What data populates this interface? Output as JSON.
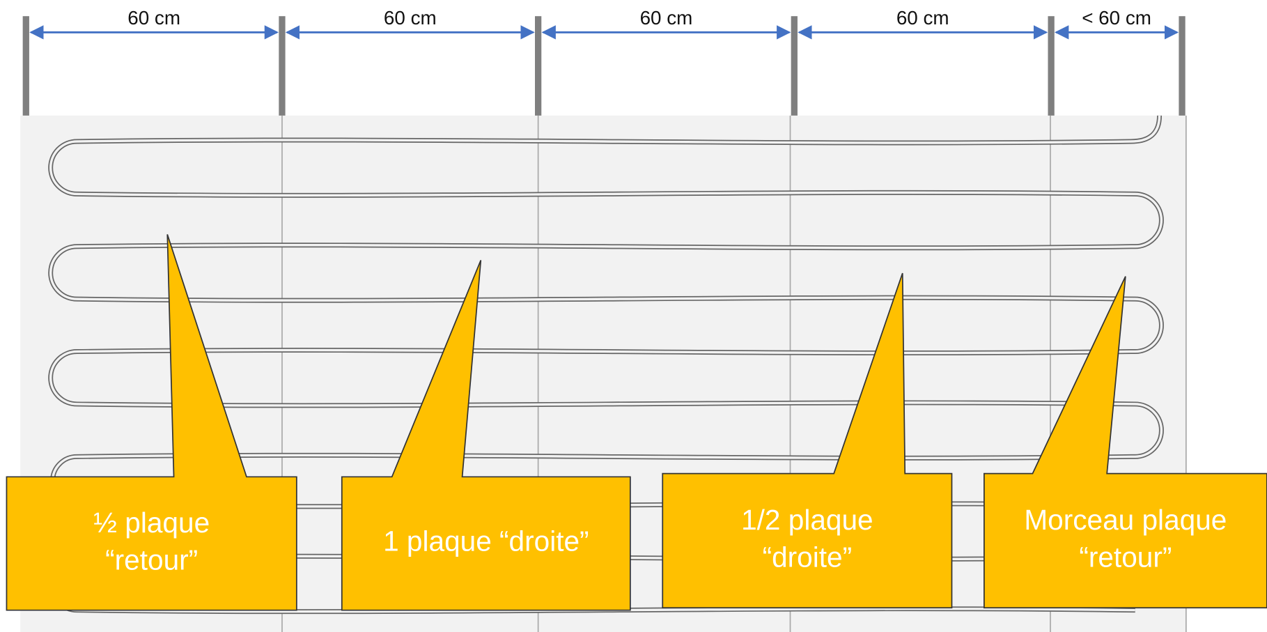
{
  "dimensions": [
    "60 cm",
    "60 cm",
    "60 cm",
    "60 cm",
    "< 60 cm"
  ],
  "callouts": [
    {
      "lines": [
        "½ plaque",
        "“retour”"
      ]
    },
    {
      "lines": [
        "1 plaque “droite”"
      ]
    },
    {
      "lines": [
        "1/2 plaque",
        "“droite”"
      ]
    },
    {
      "lines": [
        "Morceau plaque",
        "“retour”"
      ]
    }
  ]
}
